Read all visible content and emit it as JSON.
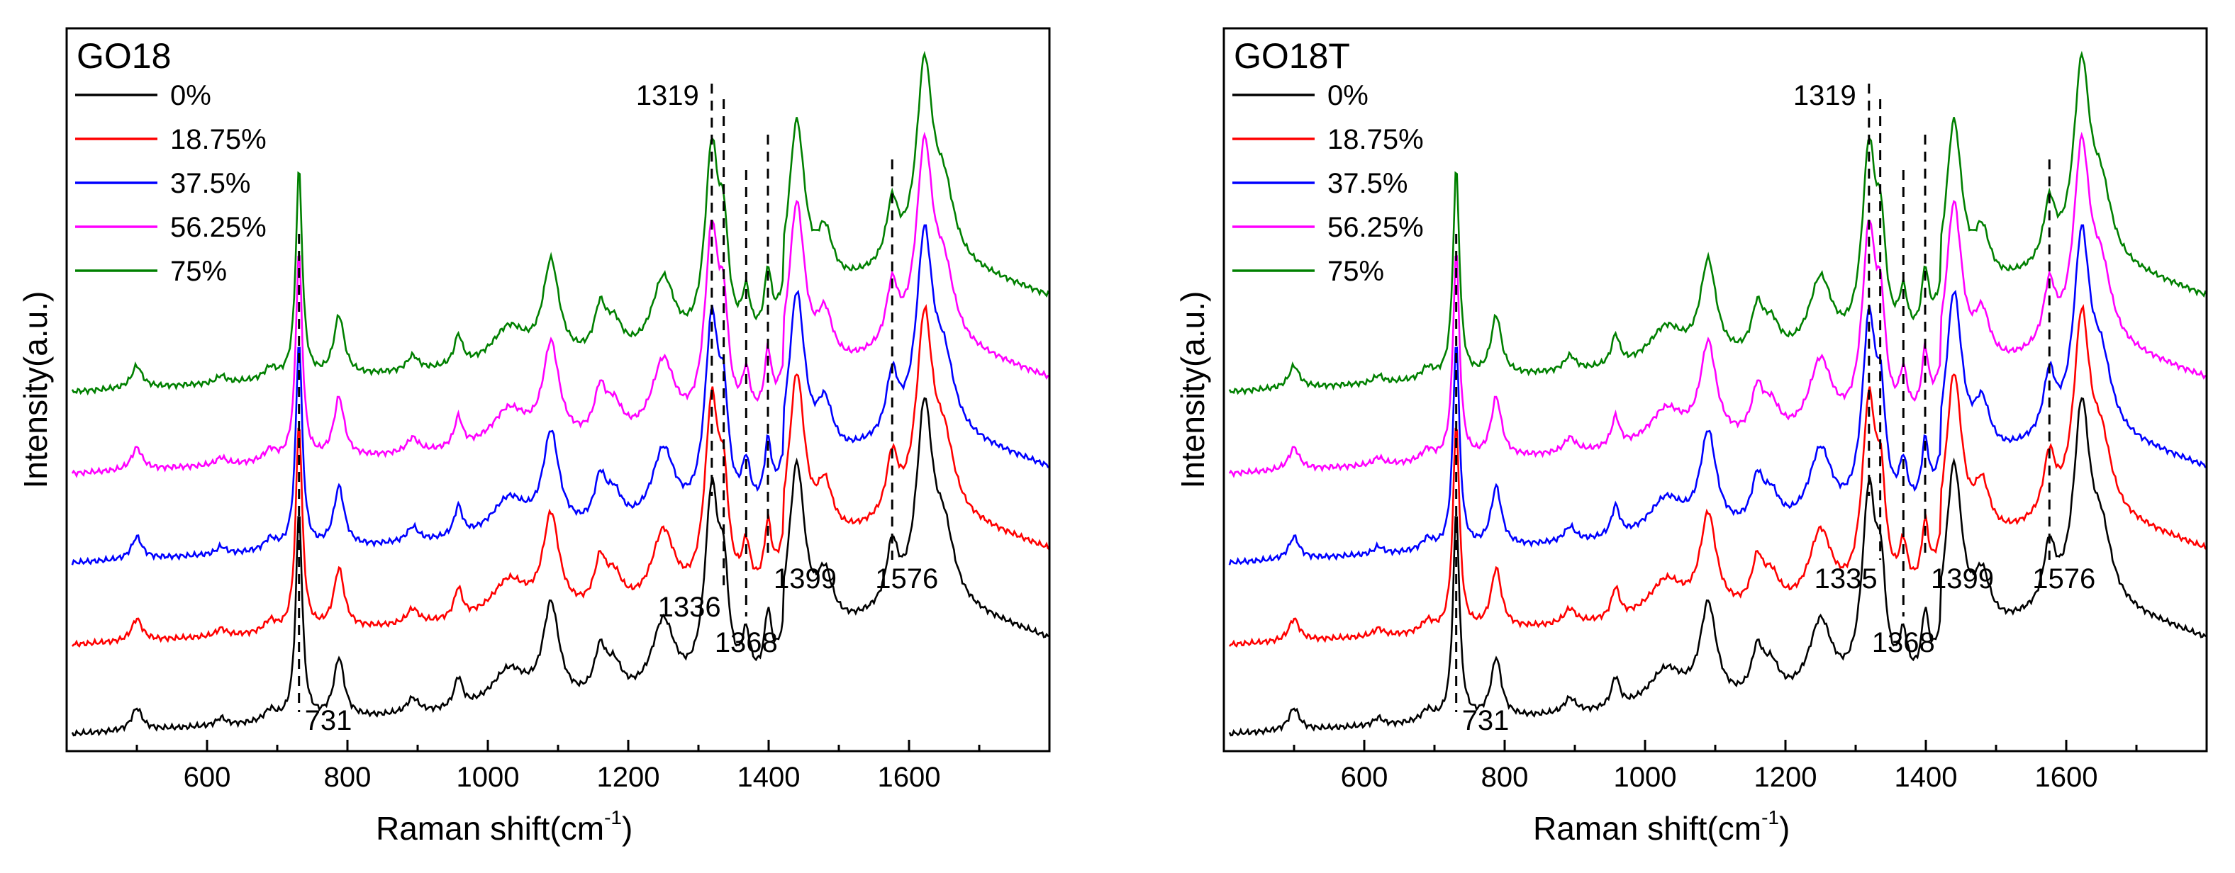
{
  "chart_data": [
    {
      "type": "line",
      "title": "GO18",
      "xlabel": "Raman shift(cm",
      "xlabel_sup": "-1",
      "xlabel_close": ")",
      "ylabel": "Intensity(a.u.)",
      "xlim": [
        400,
        1800
      ],
      "xticks": [
        600,
        800,
        1000,
        1200,
        1400,
        1600
      ],
      "legend_position": "top-left",
      "series": [
        {
          "name": "0%",
          "color": "#000000",
          "offset": 0
        },
        {
          "name": "18.75%",
          "color": "#ff0000",
          "offset": 0.12
        },
        {
          "name": "37.5%",
          "color": "#0000ff",
          "offset": 0.23
        },
        {
          "name": "56.25%",
          "color": "#ff00ff",
          "offset": 0.35
        },
        {
          "name": "75%",
          "color": "#008000",
          "offset": 0.46
        }
      ],
      "annotations": [
        {
          "label": "731",
          "x": 731
        },
        {
          "label": "1319",
          "x": 1319
        },
        {
          "label": "1336",
          "x": 1336
        },
        {
          "label": "1368",
          "x": 1368
        },
        {
          "label": "1399",
          "x": 1399
        },
        {
          "label": "1576",
          "x": 1576
        }
      ]
    },
    {
      "type": "line",
      "title": "GO18T",
      "xlabel": "Raman shift(cm",
      "xlabel_sup": "-1",
      "xlabel_close": ")",
      "ylabel": "Intensity(a.u.)",
      "xlim": [
        400,
        1800
      ],
      "xticks": [
        600,
        800,
        1000,
        1200,
        1400,
        1600
      ],
      "legend_position": "top-left",
      "series": [
        {
          "name": "0%",
          "color": "#000000",
          "offset": 0
        },
        {
          "name": "18.75%",
          "color": "#ff0000",
          "offset": 0.12
        },
        {
          "name": "37.5%",
          "color": "#0000ff",
          "offset": 0.23
        },
        {
          "name": "56.25%",
          "color": "#ff00ff",
          "offset": 0.35
        },
        {
          "name": "75%",
          "color": "#008000",
          "offset": 0.46
        }
      ],
      "annotations": [
        {
          "label": "731",
          "x": 731
        },
        {
          "label": "1319",
          "x": 1319
        },
        {
          "label": "1335",
          "x": 1335
        },
        {
          "label": "1368",
          "x": 1368
        },
        {
          "label": "1399",
          "x": 1399
        },
        {
          "label": "1576",
          "x": 1576
        }
      ]
    }
  ]
}
